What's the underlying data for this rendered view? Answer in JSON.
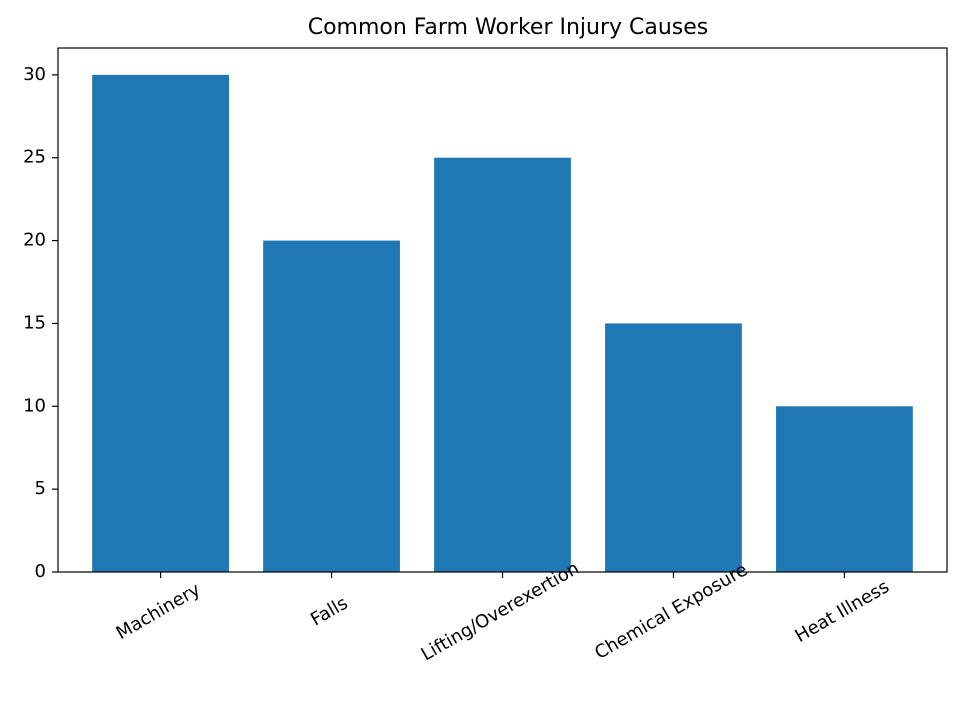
{
  "chart_data": {
    "type": "bar",
    "title": "Common Farm Worker Injury Causes",
    "categories": [
      "Machinery",
      "Falls",
      "Lifting/Overexertion",
      "Chemical Exposure",
      "Heat Illness"
    ],
    "values": [
      30,
      20,
      25,
      15,
      10
    ],
    "color": "#1f77b4",
    "ylim": [
      0,
      31.5
    ],
    "yticks": [
      0,
      5,
      10,
      15,
      20,
      25,
      30
    ],
    "grid": false
  }
}
